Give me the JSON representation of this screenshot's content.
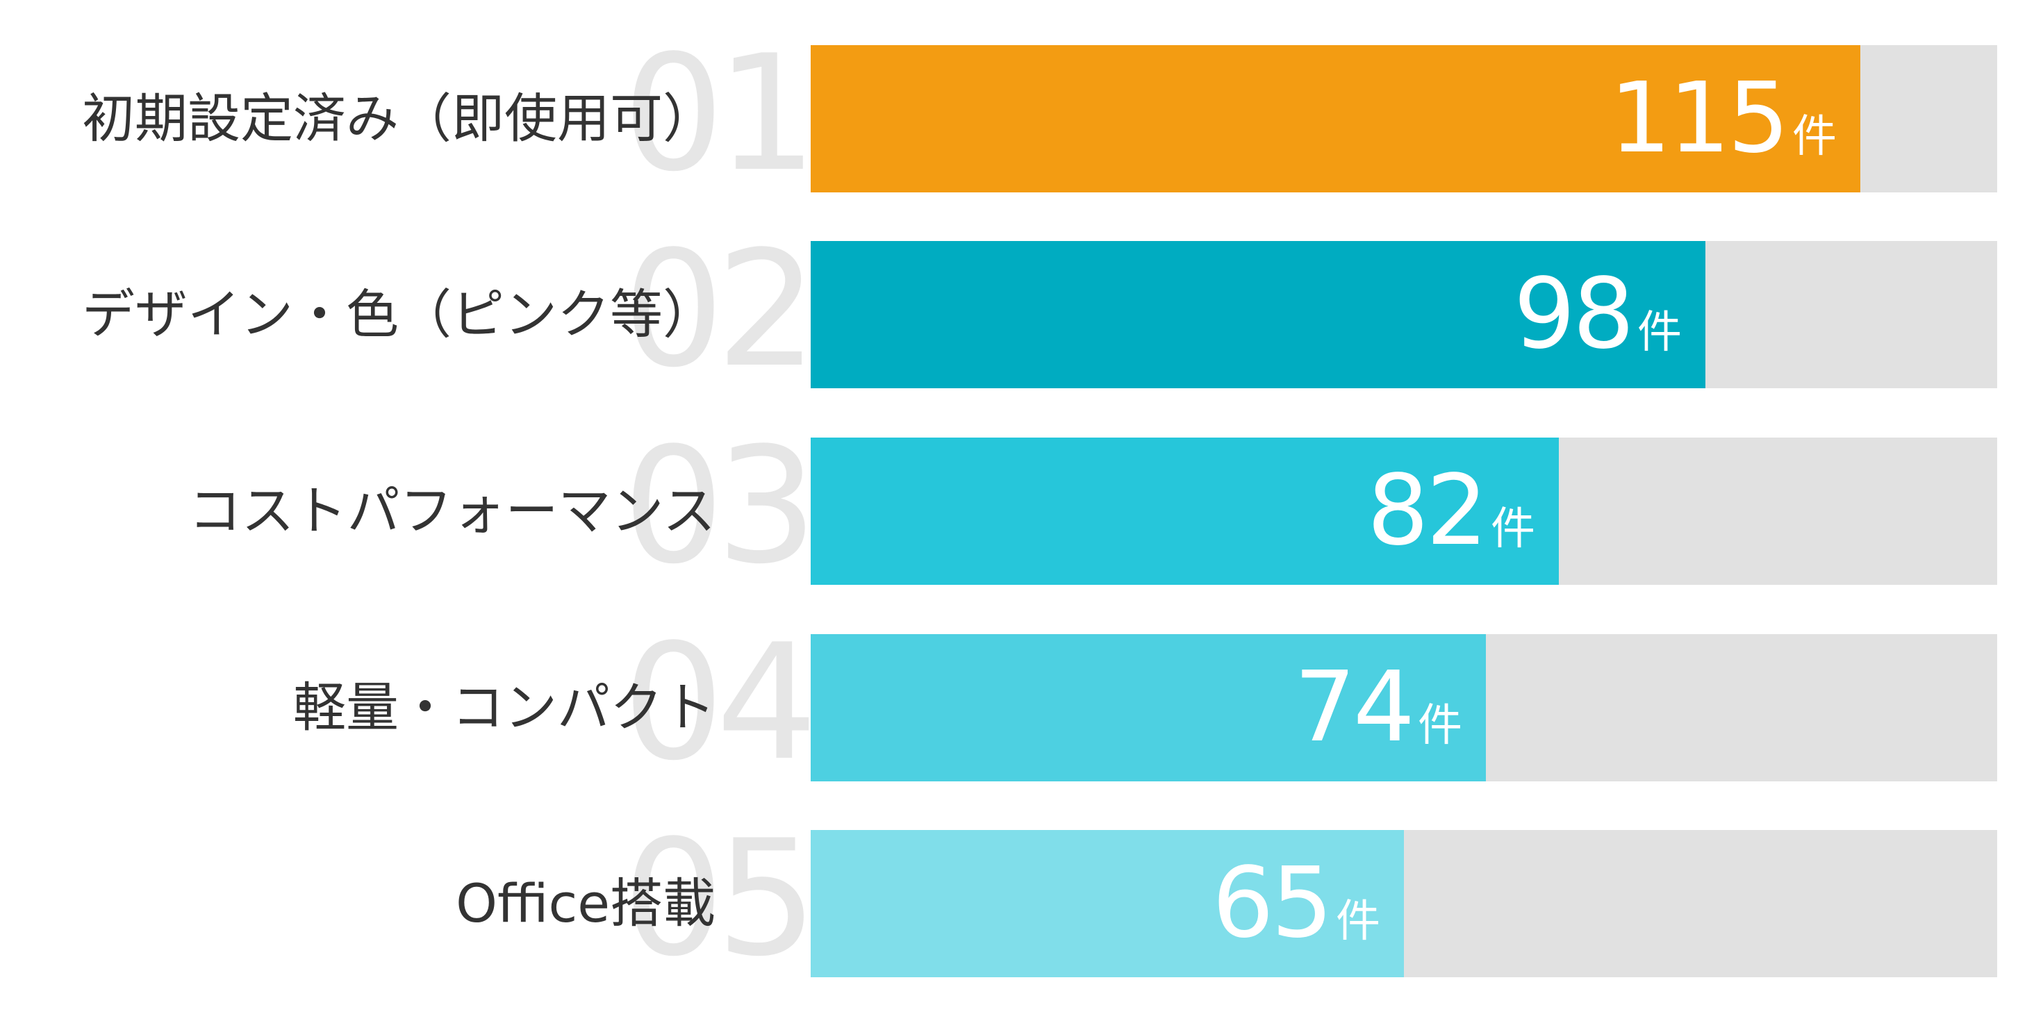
{
  "chart_data": {
    "type": "bar",
    "orientation": "horizontal",
    "unit": "件",
    "xlim": [
      0,
      130
    ],
    "categories": [
      "初期設定済み（即使用可）",
      "デザイン・色（ピンク等）",
      "コストパフォーマンス",
      "軽量・コンパクト",
      "Office搭載"
    ],
    "ranks": [
      "01",
      "02",
      "03",
      "04",
      "05"
    ],
    "values": [
      115,
      98,
      82,
      74,
      65
    ],
    "colors": [
      "#f39c12",
      "#00acc1",
      "#26c6da",
      "#4dd0e1",
      "#80deea"
    ],
    "track_color": "#e1e1e1",
    "rank_color": "#e6e6e6"
  }
}
